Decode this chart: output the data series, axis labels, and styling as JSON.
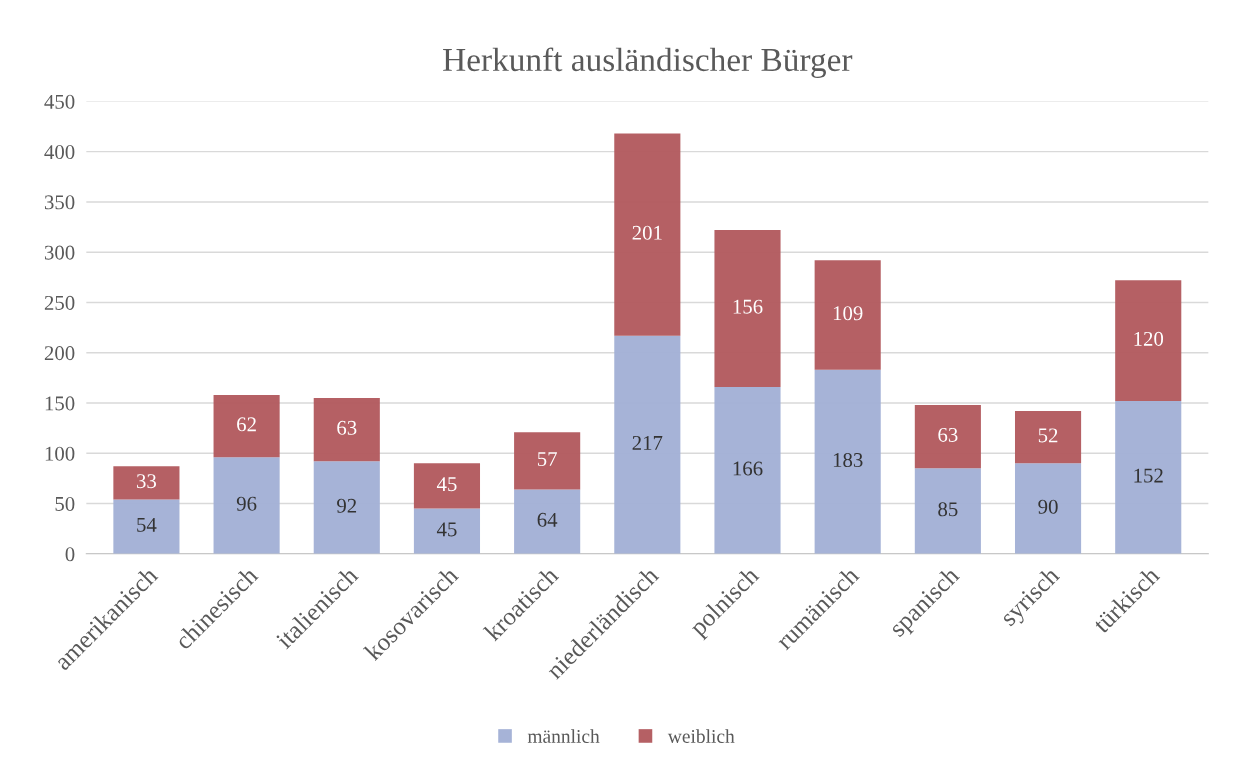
{
  "chart_data": {
    "type": "bar",
    "title": "Herkunft ausländischer Bürger",
    "stacked": true,
    "categories": [
      "amerikanisch",
      "chinesisch",
      "italienisch",
      "kosovarisch",
      "kroatisch",
      "niederländisch",
      "polnisch",
      "rumänisch",
      "spanisch",
      "syrisch",
      "türkisch"
    ],
    "series": [
      {
        "name": "männlich",
        "color": "#a3b1d6",
        "values": [
          54,
          96,
          92,
          45,
          64,
          217,
          166,
          183,
          85,
          90,
          152
        ]
      },
      {
        "name": "weiblich",
        "color": "#b35b5f",
        "values": [
          33,
          62,
          63,
          45,
          57,
          201,
          156,
          109,
          63,
          52,
          120
        ]
      }
    ],
    "ylim": [
      0,
      450
    ],
    "yticks": [
      0,
      50,
      100,
      150,
      200,
      250,
      300,
      350,
      400,
      450
    ],
    "grid": "y",
    "legend": "bottom",
    "data_labels": true
  }
}
